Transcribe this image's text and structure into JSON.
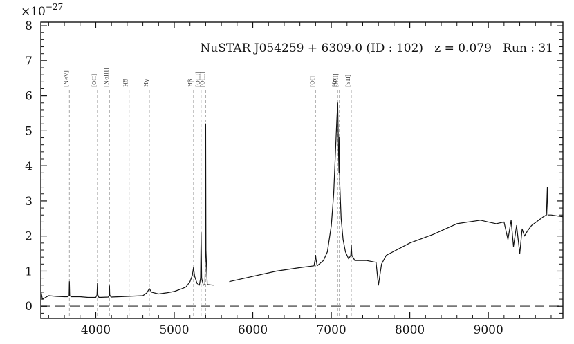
{
  "chart_data": {
    "type": "line",
    "title": "NuSTAR J054259 + 6309.0 (ID : 102)   z = 0.079   Run : 31",
    "xlabel": "",
    "ylabel": "",
    "y_scale_label": "×10",
    "y_scale_exponent": "−27",
    "xlim": [
      3300,
      9950
    ],
    "ylim": [
      -0.35,
      8.1
    ],
    "x_ticks": [
      4000,
      5000,
      6000,
      7000,
      8000,
      9000
    ],
    "x_tick_labels": [
      "4000",
      "5000",
      "6000",
      "7000",
      "8000",
      "9000"
    ],
    "y_ticks": [
      0,
      1,
      2,
      3,
      4,
      5,
      6,
      7,
      8
    ],
    "y_tick_labels": [
      "0",
      "1",
      "2",
      "3",
      "4",
      "5",
      "6",
      "7",
      "8"
    ],
    "grid": false,
    "zero_line": {
      "y": 0,
      "style": "dashed",
      "color": "#777777"
    },
    "series_color": "#111111",
    "emission_lines": [
      {
        "label": "[NeV]",
        "x": 3664
      },
      {
        "label": "[OII]",
        "x": 4021
      },
      {
        "label": "[NeIII]",
        "x": 4175
      },
      {
        "label": "Hδ",
        "x": 4425
      },
      {
        "label": "Hγ",
        "x": 4683
      },
      {
        "label": "Hβ",
        "x": 5245
      },
      {
        "label": "[OIII]",
        "x": 5342
      },
      {
        "label": "[OIII]",
        "x": 5400
      },
      {
        "label": "[OI]",
        "x": 6800
      },
      {
        "label": "Hα",
        "x": 7081
      },
      {
        "label": "[NII]",
        "x": 7102
      },
      {
        "label": "[SII]",
        "x": 7255
      }
    ],
    "segments": [
      {
        "name": "blue-arm",
        "x": [
          3300,
          3320,
          3400,
          3500,
          3600,
          3640,
          3660,
          3664,
          3668,
          3690,
          3800,
          3900,
          4000,
          4015,
          4021,
          4027,
          4040,
          4160,
          4172,
          4175,
          4178,
          4195,
          4300,
          4400,
          4500,
          4600,
          4650,
          4683,
          4710,
          4800,
          4900,
          5000,
          5100,
          5150,
          5200,
          5230,
          5245,
          5260,
          5290,
          5320,
          5335,
          5342,
          5349,
          5370,
          5390,
          5397,
          5400,
          5403,
          5420,
          5500
        ],
        "y": [
          0.45,
          0.2,
          0.3,
          0.28,
          0.27,
          0.27,
          0.3,
          0.7,
          0.3,
          0.27,
          0.27,
          0.25,
          0.25,
          0.32,
          0.65,
          0.32,
          0.25,
          0.26,
          0.32,
          0.58,
          0.32,
          0.26,
          0.27,
          0.28,
          0.29,
          0.3,
          0.38,
          0.5,
          0.4,
          0.35,
          0.38,
          0.42,
          0.5,
          0.55,
          0.7,
          0.88,
          1.1,
          0.85,
          0.65,
          0.6,
          0.8,
          2.1,
          0.8,
          0.6,
          0.62,
          1.6,
          5.2,
          1.6,
          0.62,
          0.6
        ]
      },
      {
        "name": "red-arm",
        "x": [
          5700,
          6000,
          6300,
          6600,
          6780,
          6795,
          6800,
          6805,
          6820,
          6900,
          6950,
          7000,
          7030,
          7055,
          7070,
          7081,
          7092,
          7098,
          7102,
          7108,
          7125,
          7150,
          7180,
          7220,
          7248,
          7255,
          7262,
          7300,
          7450,
          7570,
          7600,
          7640,
          7700,
          8000,
          8300,
          8600,
          8900,
          9000,
          9100,
          9200,
          9250,
          9290,
          9320,
          9360,
          9400,
          9430,
          9460,
          9500,
          9550,
          9700,
          9740,
          9752,
          9760,
          9800,
          9950
        ],
        "y": [
          0.7,
          0.85,
          1.0,
          1.1,
          1.15,
          1.35,
          1.45,
          1.35,
          1.15,
          1.3,
          1.55,
          2.3,
          3.2,
          4.5,
          5.3,
          5.8,
          4.4,
          3.8,
          4.8,
          3.5,
          2.5,
          1.9,
          1.55,
          1.35,
          1.45,
          1.75,
          1.45,
          1.3,
          1.3,
          1.25,
          0.6,
          1.2,
          1.45,
          1.8,
          2.05,
          2.35,
          2.45,
          2.4,
          2.35,
          2.4,
          1.9,
          2.45,
          1.7,
          2.3,
          1.5,
          2.2,
          2.0,
          2.15,
          2.3,
          2.55,
          2.6,
          3.4,
          2.6,
          2.6,
          2.55
        ]
      }
    ]
  }
}
